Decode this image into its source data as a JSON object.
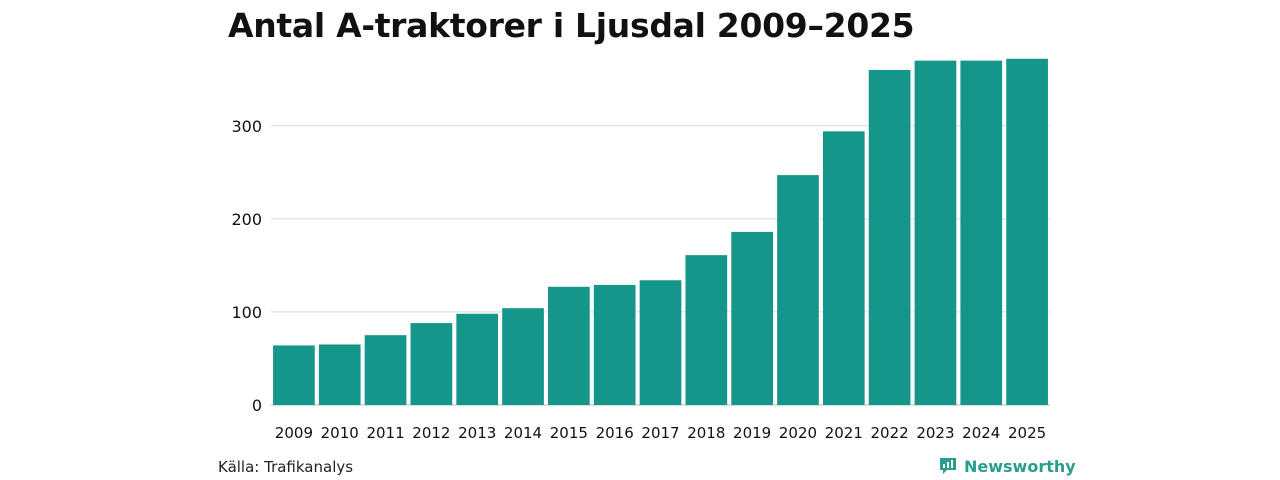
{
  "chart_data": {
    "type": "bar",
    "title": "Antal A-traktorer i Ljusdal 2009–2025",
    "categories": [
      "2009",
      "2010",
      "2011",
      "2012",
      "2013",
      "2014",
      "2015",
      "2016",
      "2017",
      "2018",
      "2019",
      "2020",
      "2021",
      "2022",
      "2023",
      "2024",
      "2025"
    ],
    "values": [
      64,
      65,
      75,
      88,
      98,
      104,
      127,
      129,
      134,
      161,
      186,
      247,
      294,
      360,
      370,
      370,
      372
    ],
    "yticks": [
      0,
      100,
      200,
      300
    ],
    "ylim": [
      0,
      390
    ],
    "xlabel": "",
    "ylabel": "",
    "grid": true,
    "bar_color": "#15968a"
  },
  "footer": {
    "source": "Källa: Trafikanalys",
    "brand": "Newsworthy",
    "brand_icon": "newsworthy-logo-icon",
    "brand_color": "#2a9d8f"
  }
}
